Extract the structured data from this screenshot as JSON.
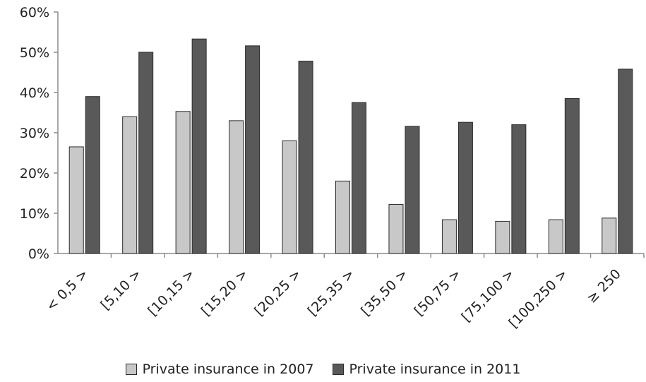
{
  "chart_data": {
    "type": "bar",
    "categories": [
      "< 0,5 >",
      "[5,10 >",
      "[10,15 >",
      "[15,20 >",
      "[20,25 >",
      "[25,35 >",
      "[35,50 >",
      "[50,75 >",
      "[75,100 >",
      "[100,250 >",
      "≥ 250"
    ],
    "series": [
      {
        "name": "Private insurance in 2007",
        "color": "#c8c8c8",
        "values": [
          26.5,
          34,
          35.3,
          33,
          28,
          18,
          12.2,
          8.4,
          8,
          8.4,
          8.8
        ]
      },
      {
        "name": "Private insurance in 2011",
        "color": "#595959",
        "values": [
          39,
          50,
          53.3,
          51.6,
          47.8,
          37.5,
          31.6,
          32.6,
          32,
          38.5,
          45.8
        ]
      }
    ],
    "ylim": [
      0,
      60
    ],
    "yticks": [
      "0%",
      "10%",
      "20%",
      "30%",
      "40%",
      "50%",
      "60%"
    ],
    "grid": false,
    "legend_position": "bottom",
    "title": "",
    "xlabel": "",
    "ylabel": ""
  }
}
